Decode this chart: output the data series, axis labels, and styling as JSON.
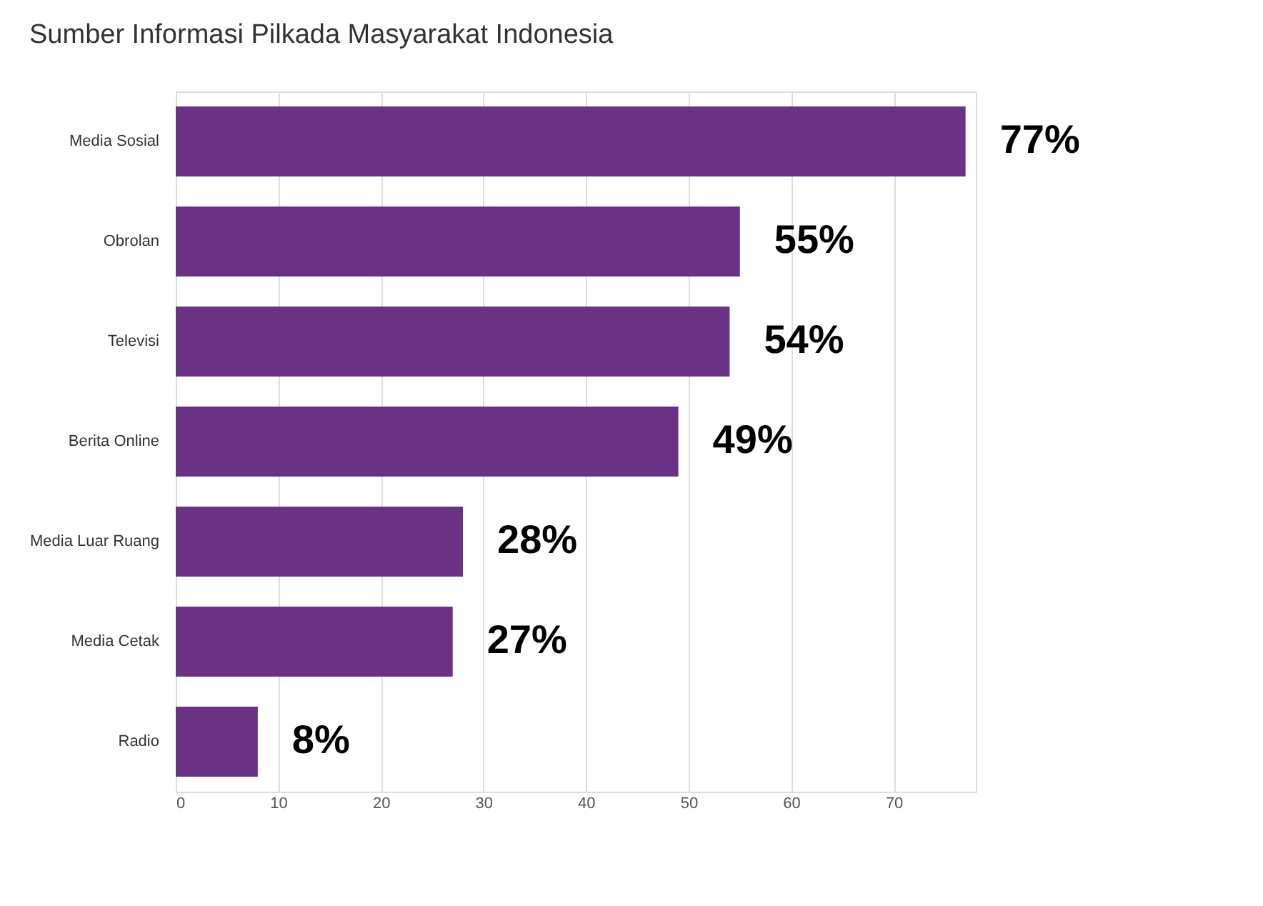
{
  "chart_data": {
    "type": "bar",
    "orientation": "horizontal",
    "title": "Sumber Informasi Pilkada Masyarakat Indonesia",
    "categories": [
      "Media Sosial",
      "Obrolan",
      "Televisi",
      "Berita Online",
      "Media Luar Ruang",
      "Media Cetak",
      "Radio"
    ],
    "values": [
      77,
      55,
      54,
      49,
      28,
      27,
      8
    ],
    "value_labels": [
      "77%",
      "55%",
      "54%",
      "49%",
      "28%",
      "27%",
      "8%"
    ],
    "color": "#6a3285",
    "xlim": [
      0,
      78
    ],
    "xticks": [
      0,
      10,
      20,
      30,
      40,
      50,
      60,
      70
    ],
    "grid": "x"
  }
}
